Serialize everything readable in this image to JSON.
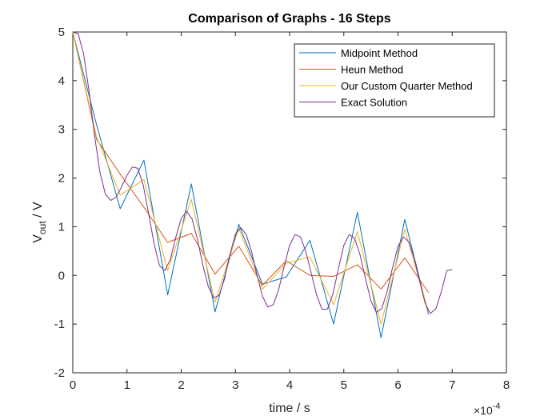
{
  "chart_data": {
    "type": "line",
    "title": "Comparison of Graphs - 16 Steps",
    "xlabel": "time / s",
    "ylabel": {
      "base": "V",
      "subscript": "out",
      "suffix": " / V"
    },
    "x_exponent": {
      "prefix": "×10",
      "power": "-4"
    },
    "xlim": [
      0,
      8
    ],
    "ylim": [
      -2,
      5
    ],
    "xticks": [
      0,
      1,
      2,
      3,
      4,
      5,
      6,
      7,
      8
    ],
    "yticks": [
      -2,
      -1,
      0,
      1,
      2,
      3,
      4,
      5
    ],
    "xunits_note": "x values in units of 1e-4 s",
    "grid": false,
    "legend_position": "top-right",
    "series": [
      {
        "name": "Midpoint Method",
        "color": "#0072BD",
        "x": [
          0,
          0.4375,
          0.875,
          1.3125,
          1.75,
          2.1875,
          2.625,
          3.0625,
          3.5,
          3.9375,
          4.375,
          4.8125,
          5.25,
          5.6875,
          6.125,
          6.5625
        ],
        "y": [
          5,
          3.1,
          1.37,
          2.37,
          -0.4,
          1.88,
          -0.75,
          1.05,
          -0.18,
          -0.03,
          0.72,
          -1.0,
          1.3,
          -1.28,
          1.15,
          -0.8
        ]
      },
      {
        "name": "Heun Method",
        "color": "#D95319",
        "x": [
          0,
          0.4375,
          0.875,
          1.3125,
          1.75,
          2.1875,
          2.625,
          3.0625,
          3.5,
          3.9375,
          4.375,
          4.8125,
          5.25,
          5.6875,
          6.125,
          6.5625
        ],
        "y": [
          5,
          2.8,
          2.08,
          1.4,
          0.68,
          0.86,
          0.03,
          0.6,
          -0.2,
          0.3,
          0.0,
          -0.02,
          0.22,
          -0.28,
          0.36,
          -0.35
        ]
      },
      {
        "name": "Our Custom Quarter Method",
        "color": "#EDB120",
        "x": [
          0,
          0.4375,
          0.875,
          1.3125,
          1.75,
          2.1875,
          2.625,
          3.0625,
          3.5,
          3.9375,
          4.375,
          4.8125,
          5.25,
          5.6875,
          6.125,
          6.5625
        ],
        "y": [
          5,
          2.85,
          1.65,
          1.97,
          0.1,
          1.56,
          -0.55,
          0.97,
          -0.28,
          0.25,
          0.38,
          -0.6,
          0.9,
          -1.0,
          0.95,
          -0.75
        ]
      },
      {
        "name": "Exact Solution",
        "color": "#7E2F8E",
        "x": [
          0,
          0.1,
          0.2,
          0.3,
          0.4,
          0.5,
          0.6,
          0.7,
          0.8,
          0.9,
          1.0,
          1.1,
          1.2,
          1.3,
          1.4,
          1.5,
          1.6,
          1.7,
          1.8,
          1.9,
          2.0,
          2.1,
          2.2,
          2.3,
          2.4,
          2.5,
          2.6,
          2.7,
          2.8,
          2.9,
          3.0,
          3.1,
          3.2,
          3.3,
          3.4,
          3.5,
          3.6,
          3.7,
          3.8,
          3.9,
          4.0,
          4.1,
          4.2,
          4.3,
          4.4,
          4.5,
          4.6,
          4.7,
          4.8,
          4.9,
          5.0,
          5.1,
          5.2,
          5.3,
          5.4,
          5.5,
          5.6,
          5.7,
          5.8,
          5.9,
          6.0,
          6.1,
          6.2,
          6.3,
          6.4,
          6.5,
          6.6,
          6.7,
          6.8,
          6.9,
          7.0
        ],
        "y": [
          5.0,
          4.96,
          4.55,
          3.79,
          2.88,
          2.12,
          1.67,
          1.54,
          1.61,
          1.82,
          2.06,
          2.23,
          2.2,
          1.85,
          1.27,
          0.65,
          0.2,
          0.1,
          0.33,
          0.78,
          1.17,
          1.32,
          1.16,
          0.74,
          0.21,
          -0.23,
          -0.46,
          -0.41,
          -0.07,
          0.44,
          0.85,
          0.98,
          0.84,
          0.48,
          0.0,
          -0.43,
          -0.65,
          -0.6,
          -0.29,
          0.19,
          0.62,
          0.84,
          0.79,
          0.49,
          0.04,
          -0.41,
          -0.7,
          -0.69,
          -0.38,
          0.14,
          0.62,
          0.84,
          0.76,
          0.42,
          -0.07,
          -0.52,
          -0.76,
          -0.68,
          -0.33,
          0.16,
          0.6,
          0.79,
          0.69,
          0.35,
          -0.13,
          -0.57,
          -0.78,
          -0.68,
          -0.33,
          0.1,
          0.12
        ]
      }
    ]
  }
}
